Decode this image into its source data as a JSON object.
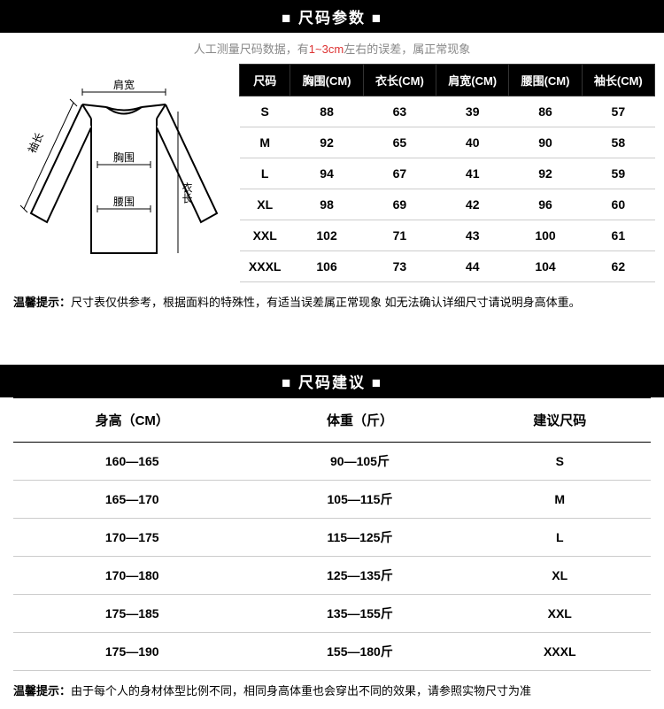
{
  "header1": {
    "title": "■ 尺码参数 ■"
  },
  "subtitle": {
    "prefix": "人工测量尺码数据，有",
    "red": "1~3cm",
    "suffix": "左右的误差，属正常现象"
  },
  "diagram": {
    "shoulder": "肩宽",
    "chest": "胸围",
    "waist": "腰围",
    "sleeve": "袖长",
    "length": "衣长",
    "stroke": "#000000",
    "fill": "#ffffff"
  },
  "sizeTable": {
    "headers": [
      "尺码",
      "胸围(CM)",
      "衣长(CM)",
      "肩宽(CM)",
      "腰围(CM)",
      "袖长(CM)"
    ],
    "rows": [
      [
        "S",
        "88",
        "63",
        "39",
        "86",
        "57"
      ],
      [
        "M",
        "92",
        "65",
        "40",
        "90",
        "58"
      ],
      [
        "L",
        "94",
        "67",
        "41",
        "92",
        "59"
      ],
      [
        "XL",
        "98",
        "69",
        "42",
        "96",
        "60"
      ],
      [
        "XXL",
        "102",
        "71",
        "43",
        "100",
        "61"
      ],
      [
        "XXXL",
        "106",
        "73",
        "44",
        "104",
        "62"
      ]
    ]
  },
  "note1": {
    "label": "温馨提示：",
    "text": "尺寸表仅供参考，根据面料的特殊性，有适当误差属正常现象 如无法确认详细尺寸请说明身高体重。"
  },
  "header2": {
    "title": "■ 尺码建议 ■"
  },
  "recTable": {
    "headers": [
      "身高（CM）",
      "体重（斤）",
      "建议尺码"
    ],
    "rows": [
      [
        "160—165",
        "90—105斤",
        "S"
      ],
      [
        "165—170",
        "105—115斤",
        "M"
      ],
      [
        "170—175",
        "115—125斤",
        "L"
      ],
      [
        "170—180",
        "125—135斤",
        "XL"
      ],
      [
        "175—185",
        "135—155斤",
        "XXL"
      ],
      [
        "175—190",
        "155—180斤",
        "XXXL"
      ]
    ]
  },
  "note2": {
    "label": "温馨提示：",
    "text": "由于每个人的身材体型比例不同，相同身高体重也会穿出不同的效果，请参照实物尺寸为准"
  }
}
